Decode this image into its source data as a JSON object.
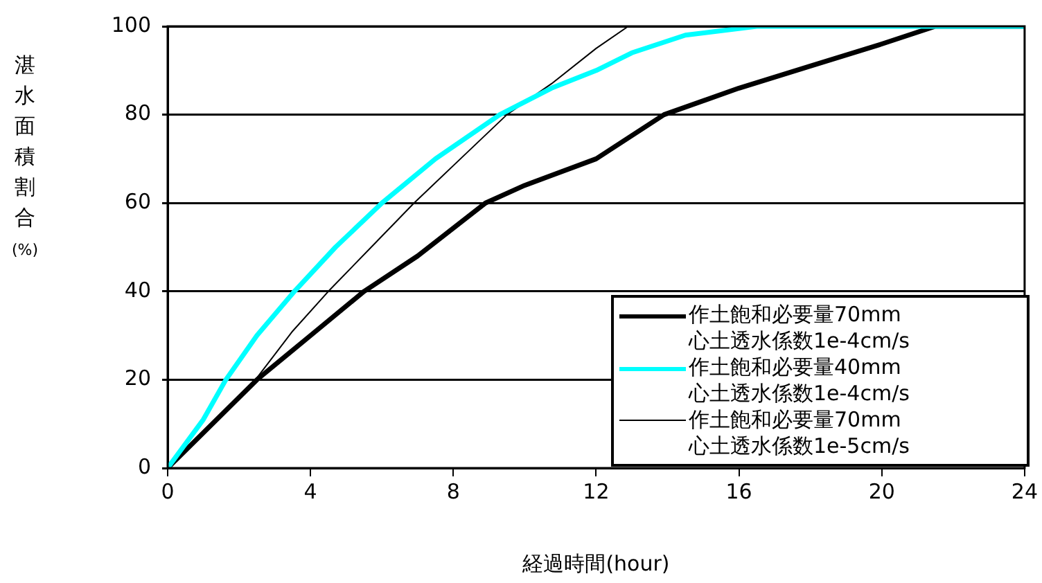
{
  "chart_data": {
    "type": "line",
    "xlabel": "経過時間(hour)",
    "ylabel": "湛水面積割合(%)",
    "xlim": [
      0,
      24
    ],
    "xticks": [
      0,
      4,
      8,
      12,
      16,
      20,
      24
    ],
    "ylim": [
      0,
      100
    ],
    "yticks": [
      0,
      20,
      40,
      60,
      80,
      100
    ],
    "grid": "y",
    "legend": "bottom right",
    "marker": "none",
    "line_style": "solid",
    "series": [
      {
        "name": "作土飽和必要量70mm 心土透水係数1e-4cm/s",
        "color": "#000000",
        "x": [
          0,
          1,
          2,
          2.5,
          4,
          5.5,
          7,
          8.9,
          10,
          12,
          13.9,
          16,
          18,
          20,
          21.5,
          24
        ],
        "values": [
          0,
          8,
          16,
          20,
          30,
          40,
          48,
          60,
          64,
          70,
          80,
          86,
          91,
          96,
          100,
          100
        ]
      },
      {
        "name": "作土飽和必要量40mm 心土透水係数1e-4cm/s",
        "color": "#00ffff",
        "x": [
          0,
          1,
          1.63,
          2.5,
          3.55,
          4.7,
          6,
          7.5,
          9.3,
          10.75,
          12,
          13,
          14.5,
          16.5,
          24
        ],
        "values": [
          0,
          11,
          20,
          30,
          40,
          50,
          60,
          70,
          80,
          86,
          90,
          94,
          98,
          100,
          100
        ]
      },
      {
        "name": "作土飽和必要量70mm 心土透水係数1e-5cm/s",
        "color": "#000000",
        "x": [
          0,
          1,
          2.46,
          3.5,
          4.5,
          5.7,
          6.9,
          8.2,
          9.5,
          10.75,
          12,
          12.9,
          24
        ],
        "values": [
          0,
          8,
          20,
          31,
          40,
          50,
          60,
          70,
          80,
          87,
          95,
          100,
          100
        ]
      }
    ]
  }
}
